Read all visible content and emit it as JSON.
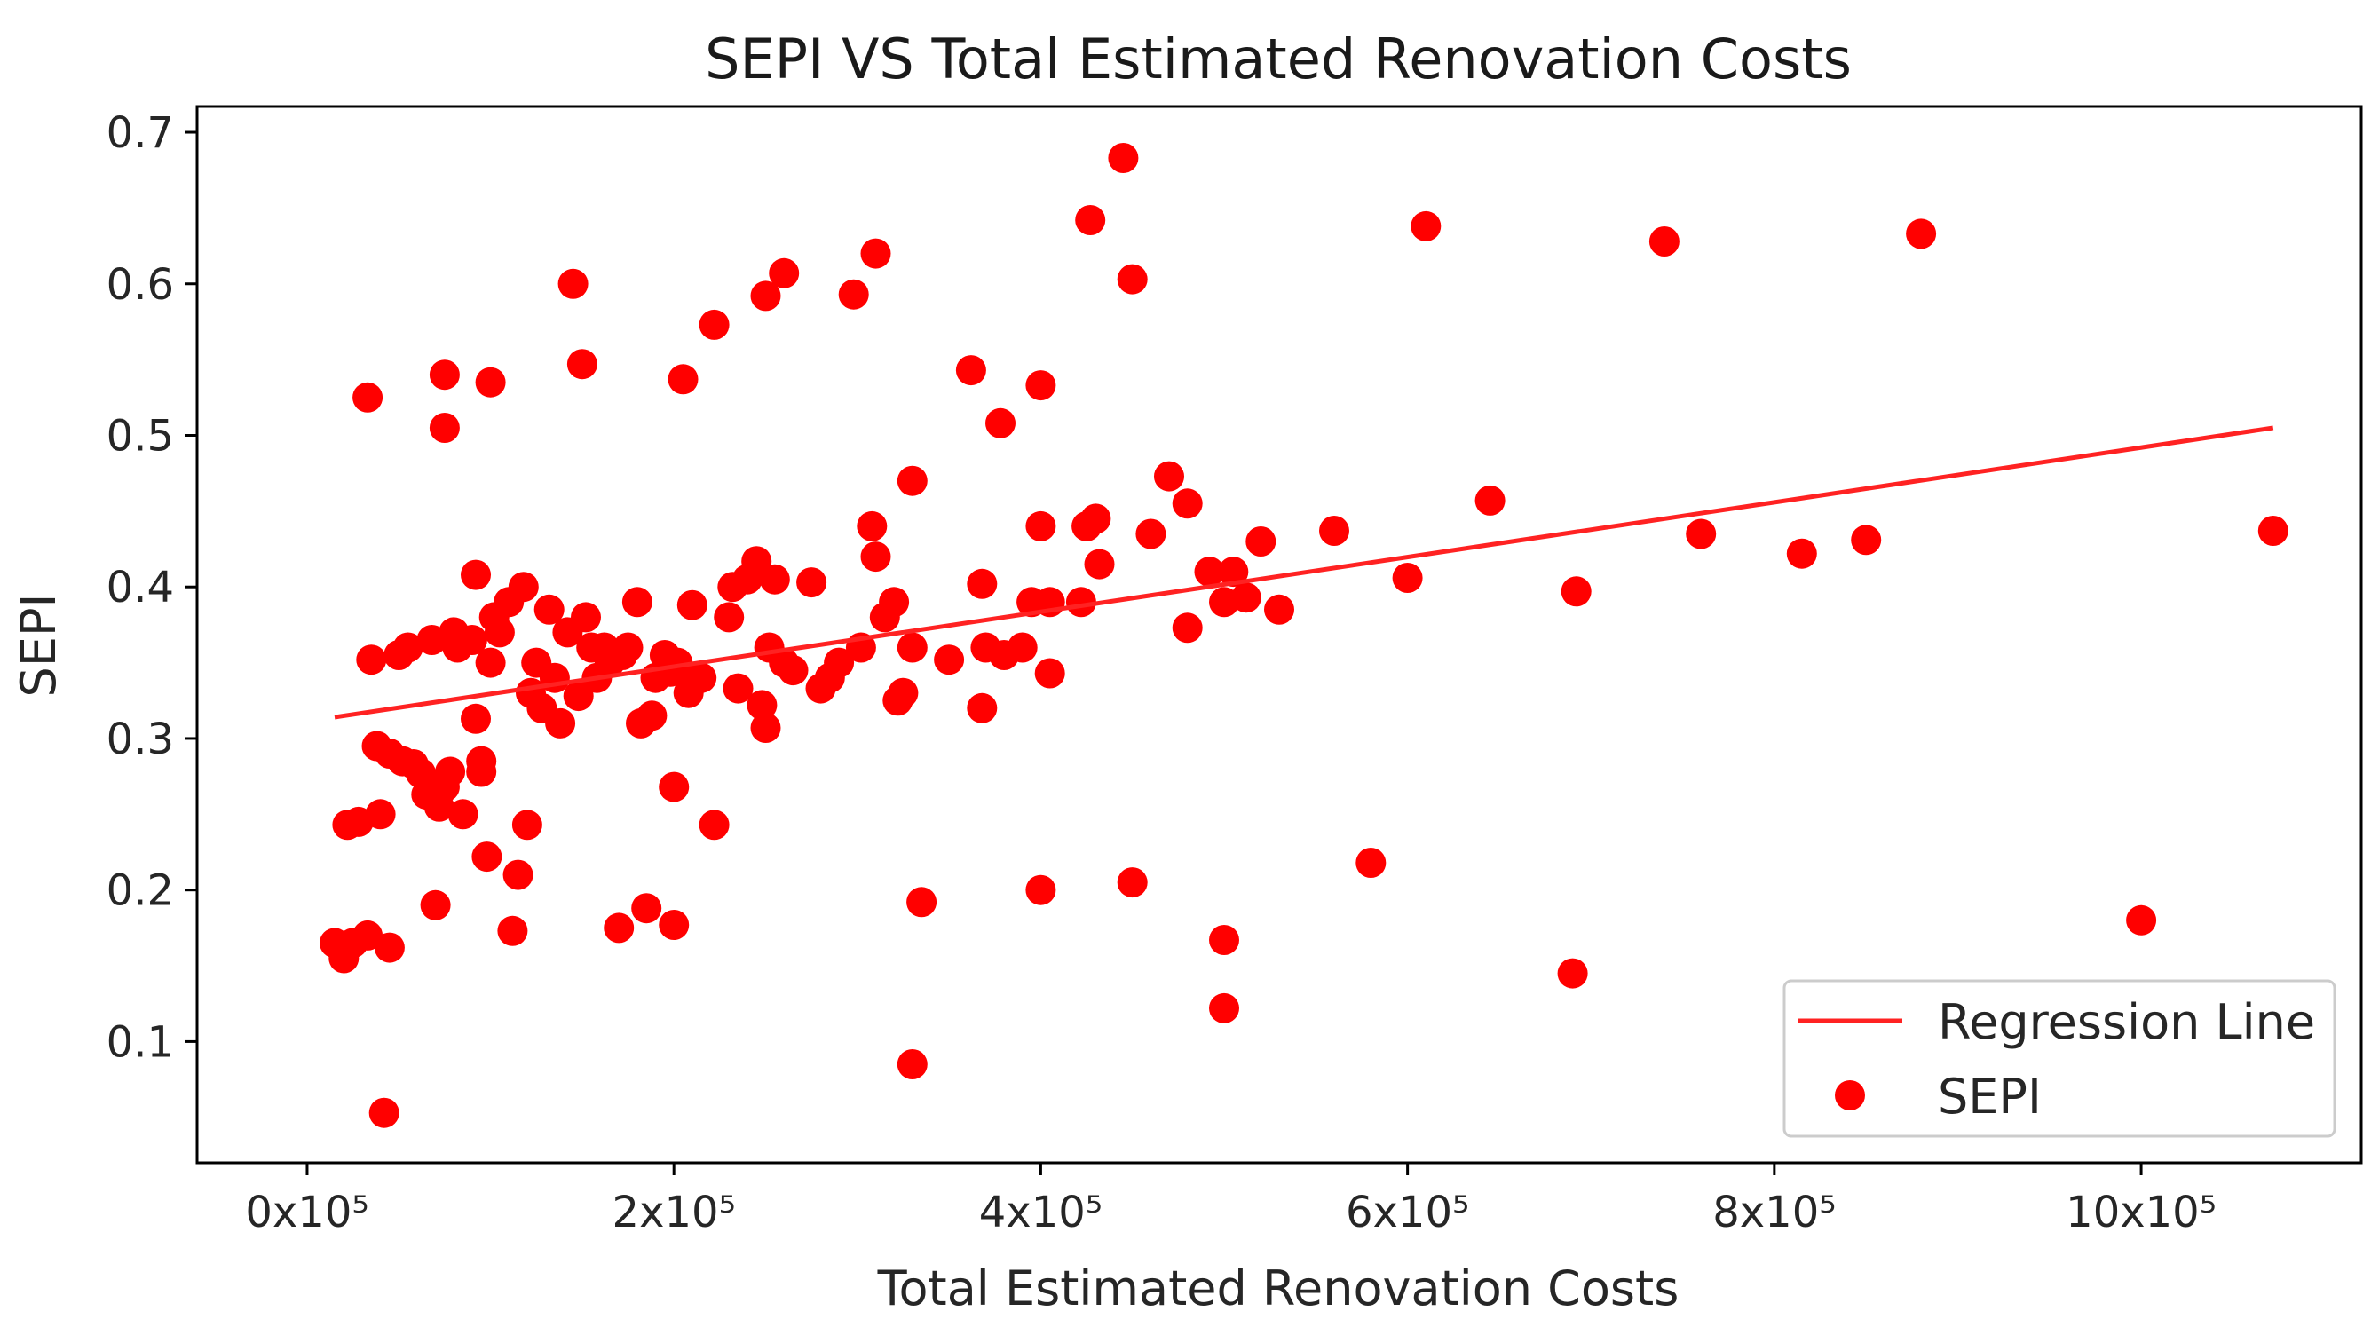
{
  "chart_data": {
    "type": "scatter",
    "title": "SEPI VS Total Estimated Renovation Costs",
    "xlabel": "Total Estimated Renovation Costs",
    "ylabel": "SEPI",
    "xlim": [
      -0.6,
      11.2
    ],
    "ylim": [
      0.02,
      0.717
    ],
    "x_unit_label": "x10⁵",
    "x_ticks": [
      0,
      2,
      4,
      6,
      8,
      10
    ],
    "x_tick_labels": [
      "0x10⁵",
      "2x10⁵",
      "4x10⁵",
      "6x10⁵",
      "8x10⁵",
      "10x10⁵"
    ],
    "y_ticks": [
      0.1,
      0.2,
      0.3,
      0.4,
      0.5,
      0.6,
      0.7
    ],
    "y_tick_labels": [
      "0.1",
      "0.2",
      "0.3",
      "0.4",
      "0.5",
      "0.6",
      "0.7"
    ],
    "grid": false,
    "legend_position": "bottom-right",
    "colors": {
      "points": "#ff0000",
      "line": "#ff2222",
      "axes": "#000000",
      "legend_border": "#cccccc"
    },
    "regression_line": {
      "name": "Regression Line",
      "x": [
        0.15,
        10.72
      ],
      "y": [
        0.314,
        0.505
      ]
    },
    "series": [
      {
        "name": "SEPI",
        "points": [
          [
            0.15,
            0.165
          ],
          [
            0.2,
            0.155
          ],
          [
            0.25,
            0.165
          ],
          [
            0.22,
            0.243
          ],
          [
            0.28,
            0.245
          ],
          [
            0.33,
            0.525
          ],
          [
            0.33,
            0.17
          ],
          [
            0.35,
            0.352
          ],
          [
            0.38,
            0.295
          ],
          [
            0.4,
            0.25
          ],
          [
            0.42,
            0.053
          ],
          [
            0.45,
            0.162
          ],
          [
            0.45,
            0.29
          ],
          [
            0.5,
            0.355
          ],
          [
            0.52,
            0.285
          ],
          [
            0.55,
            0.36
          ],
          [
            0.58,
            0.283
          ],
          [
            0.62,
            0.277
          ],
          [
            0.65,
            0.263
          ],
          [
            0.68,
            0.365
          ],
          [
            0.7,
            0.19
          ],
          [
            0.72,
            0.255
          ],
          [
            0.75,
            0.54
          ],
          [
            0.75,
            0.505
          ],
          [
            0.75,
            0.268
          ],
          [
            0.78,
            0.278
          ],
          [
            0.8,
            0.37
          ],
          [
            0.82,
            0.36
          ],
          [
            0.85,
            0.25
          ],
          [
            0.9,
            0.365
          ],
          [
            0.92,
            0.408
          ],
          [
            0.92,
            0.313
          ],
          [
            0.95,
            0.285
          ],
          [
            0.95,
            0.278
          ],
          [
            0.98,
            0.222
          ],
          [
            1.0,
            0.535
          ],
          [
            1.0,
            0.35
          ],
          [
            1.02,
            0.38
          ],
          [
            1.05,
            0.37
          ],
          [
            1.1,
            0.39
          ],
          [
            1.12,
            0.173
          ],
          [
            1.15,
            0.21
          ],
          [
            1.18,
            0.4
          ],
          [
            1.2,
            0.243
          ],
          [
            1.22,
            0.33
          ],
          [
            1.25,
            0.35
          ],
          [
            1.28,
            0.32
          ],
          [
            1.32,
            0.385
          ],
          [
            1.35,
            0.34
          ],
          [
            1.38,
            0.31
          ],
          [
            1.42,
            0.37
          ],
          [
            1.45,
            0.6
          ],
          [
            1.48,
            0.328
          ],
          [
            1.5,
            0.547
          ],
          [
            1.52,
            0.38
          ],
          [
            1.55,
            0.36
          ],
          [
            1.58,
            0.34
          ],
          [
            1.62,
            0.36
          ],
          [
            1.65,
            0.35
          ],
          [
            1.7,
            0.175
          ],
          [
            1.72,
            0.355
          ],
          [
            1.75,
            0.36
          ],
          [
            1.8,
            0.39
          ],
          [
            1.82,
            0.31
          ],
          [
            1.85,
            0.188
          ],
          [
            1.88,
            0.315
          ],
          [
            1.9,
            0.34
          ],
          [
            1.95,
            0.355
          ],
          [
            1.98,
            0.344
          ],
          [
            2.0,
            0.268
          ],
          [
            2.0,
            0.177
          ],
          [
            2.02,
            0.35
          ],
          [
            2.05,
            0.537
          ],
          [
            2.08,
            0.33
          ],
          [
            2.1,
            0.388
          ],
          [
            2.12,
            0.34
          ],
          [
            2.15,
            0.34
          ],
          [
            2.22,
            0.573
          ],
          [
            2.22,
            0.243
          ],
          [
            2.3,
            0.38
          ],
          [
            2.32,
            0.4
          ],
          [
            2.35,
            0.333
          ],
          [
            2.4,
            0.405
          ],
          [
            2.45,
            0.417
          ],
          [
            2.48,
            0.322
          ],
          [
            2.5,
            0.592
          ],
          [
            2.5,
            0.307
          ],
          [
            2.52,
            0.36
          ],
          [
            2.55,
            0.405
          ],
          [
            2.6,
            0.607
          ],
          [
            2.6,
            0.35
          ],
          [
            2.65,
            0.345
          ],
          [
            2.75,
            0.403
          ],
          [
            2.8,
            0.333
          ],
          [
            2.85,
            0.34
          ],
          [
            2.9,
            0.35
          ],
          [
            2.98,
            0.593
          ],
          [
            3.02,
            0.36
          ],
          [
            3.08,
            0.44
          ],
          [
            3.1,
            0.62
          ],
          [
            3.1,
            0.42
          ],
          [
            3.15,
            0.38
          ],
          [
            3.2,
            0.39
          ],
          [
            3.22,
            0.325
          ],
          [
            3.25,
            0.33
          ],
          [
            3.3,
            0.47
          ],
          [
            3.3,
            0.36
          ],
          [
            3.3,
            0.085
          ],
          [
            3.35,
            0.192
          ],
          [
            3.5,
            0.352
          ],
          [
            3.62,
            0.543
          ],
          [
            3.68,
            0.402
          ],
          [
            3.68,
            0.32
          ],
          [
            3.7,
            0.36
          ],
          [
            3.78,
            0.508
          ],
          [
            3.8,
            0.355
          ],
          [
            3.9,
            0.36
          ],
          [
            3.95,
            0.39
          ],
          [
            4.0,
            0.533
          ],
          [
            4.0,
            0.44
          ],
          [
            4.0,
            0.2
          ],
          [
            4.05,
            0.39
          ],
          [
            4.05,
            0.343
          ],
          [
            4.22,
            0.39
          ],
          [
            4.25,
            0.44
          ],
          [
            4.27,
            0.642
          ],
          [
            4.3,
            0.445
          ],
          [
            4.32,
            0.415
          ],
          [
            4.45,
            0.683
          ],
          [
            4.5,
            0.603
          ],
          [
            4.5,
            0.205
          ],
          [
            4.6,
            0.435
          ],
          [
            4.7,
            0.473
          ],
          [
            4.8,
            0.455
          ],
          [
            4.8,
            0.373
          ],
          [
            4.92,
            0.41
          ],
          [
            5.0,
            0.39
          ],
          [
            5.0,
            0.167
          ],
          [
            5.0,
            0.122
          ],
          [
            5.05,
            0.41
          ],
          [
            5.12,
            0.393
          ],
          [
            5.2,
            0.43
          ],
          [
            5.3,
            0.385
          ],
          [
            5.6,
            0.437
          ],
          [
            5.8,
            0.218
          ],
          [
            6.0,
            0.406
          ],
          [
            6.1,
            0.638
          ],
          [
            6.45,
            0.457
          ],
          [
            6.9,
            0.145
          ],
          [
            6.92,
            0.397
          ],
          [
            7.4,
            0.628
          ],
          [
            7.6,
            0.435
          ],
          [
            8.15,
            0.422
          ],
          [
            8.5,
            0.431
          ],
          [
            8.8,
            0.633
          ],
          [
            10.0,
            0.18
          ],
          [
            10.72,
            0.437
          ]
        ]
      }
    ]
  }
}
